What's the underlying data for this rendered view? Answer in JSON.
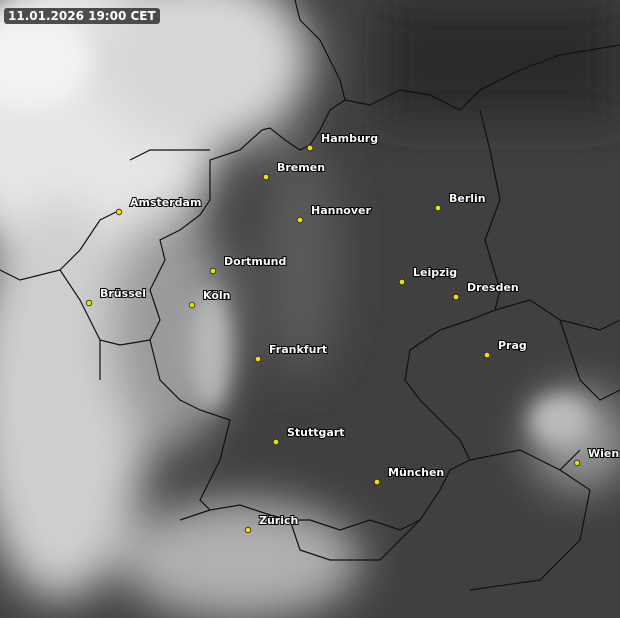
{
  "timestamp": "11.01.2026 19:00 CET",
  "cities": [
    "Hamburg",
    "Bremen",
    "Amsterdam",
    "Hannover",
    "Berlin",
    "Dortmund",
    "Leipzig",
    "Dresden",
    "Brüssel",
    "Köln",
    "Frankfurt",
    "Prag",
    "Stuttgart",
    "München",
    "Wien",
    "Zürich"
  ]
}
